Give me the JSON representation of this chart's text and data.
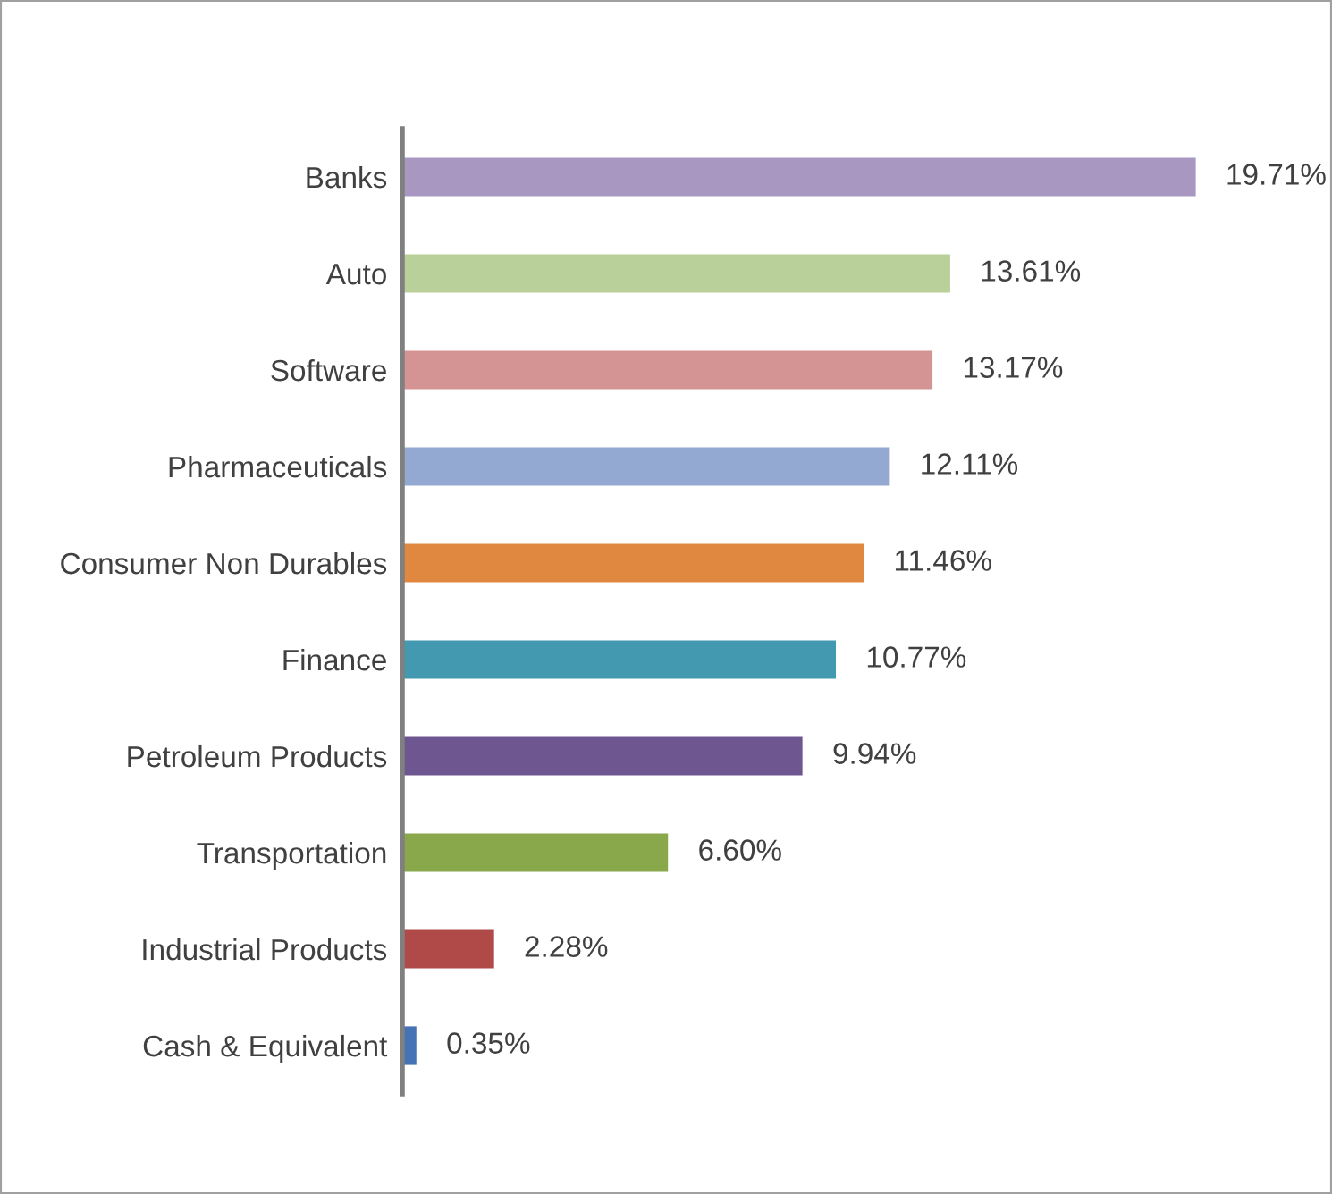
{
  "chart_data": {
    "type": "bar",
    "orientation": "horizontal",
    "categories": [
      "Banks",
      "Auto",
      "Software",
      "Pharmaceuticals",
      "Consumer Non Durables",
      "Finance",
      "Petroleum Products",
      "Transportation",
      "Industrial Products",
      "Cash & Equivalent"
    ],
    "values": [
      19.71,
      13.61,
      13.17,
      12.11,
      11.46,
      10.77,
      9.94,
      6.6,
      2.28,
      0.35
    ],
    "value_labels": [
      "19.71%",
      "13.61%",
      "13.17%",
      "12.11%",
      "11.46%",
      "10.77%",
      "9.94%",
      "6.60%",
      "2.28%",
      "0.35%"
    ],
    "colors": [
      "#a897c0",
      "#bad09a",
      "#d49494",
      "#93a9d2",
      "#e0883f",
      "#4399b0",
      "#6e5690",
      "#89a84c",
      "#b04a48",
      "#4673b5"
    ],
    "grid": false,
    "legend": false
  }
}
